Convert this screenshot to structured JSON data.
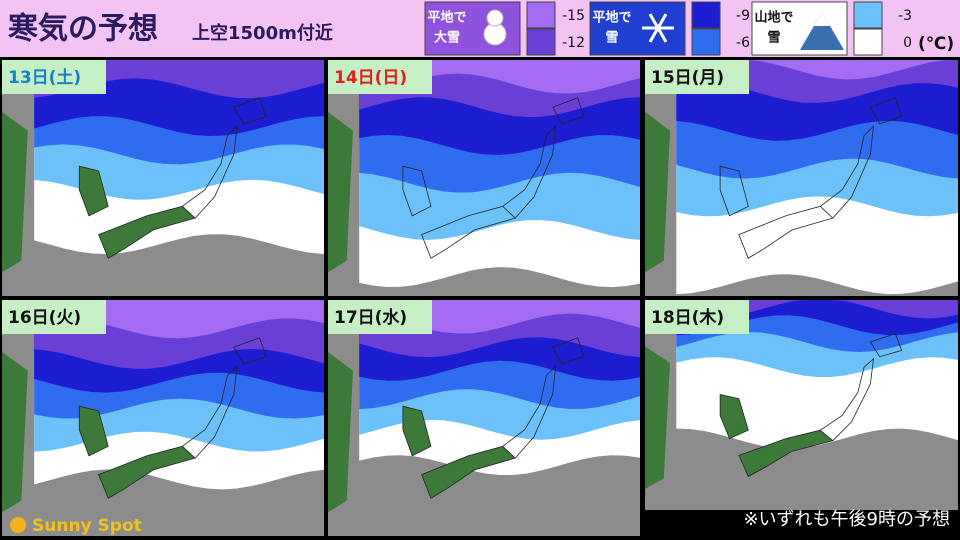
{
  "header": {
    "title": "寒気の予想",
    "subtitle": "上空1500m付近",
    "unit": "(℃)"
  },
  "legend": [
    {
      "label_lines": [
        "平地で",
        "大雪"
      ],
      "levels": [
        {
          "value": -15,
          "color": "#a46cf0"
        },
        {
          "value": -12,
          "color": "#6a3fd6"
        }
      ]
    },
    {
      "label_lines": [
        "平地で",
        "雪"
      ],
      "levels": [
        {
          "value": -9,
          "color": "#1c1cd0"
        },
        {
          "value": -6,
          "color": "#2f6cf0"
        }
      ]
    },
    {
      "label_lines": [
        "山地で",
        "雪"
      ],
      "levels": [
        {
          "value": -3,
          "color": "#6cc2f8"
        },
        {
          "value": 0,
          "color": "#ffffff"
        }
      ]
    }
  ],
  "panels": [
    {
      "label": "13日(土)",
      "color": "#1681c4"
    },
    {
      "label": "14日(日)",
      "color": "#e0201a"
    },
    {
      "label": "15日(月)",
      "color": "#111111"
    },
    {
      "label": "16日(火)",
      "color": "#111111"
    },
    {
      "label": "17日(水)",
      "color": "#111111"
    },
    {
      "label": "18日(木)",
      "color": "#111111"
    }
  ],
  "footer": {
    "note": "※いずれも午後9時の予想",
    "brand": "Sunny Spot"
  }
}
